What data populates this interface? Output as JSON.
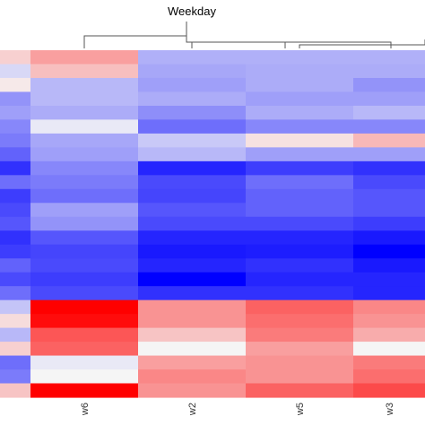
{
  "chart_data": {
    "type": "heatmap",
    "title": "Weekday",
    "columns": [
      "",
      "w6",
      "w2",
      "w5",
      "w3"
    ],
    "color_scale": {
      "low": "#0000ff",
      "mid": "#f5f5f5",
      "high": "#ff0000",
      "range": [
        -1,
        1
      ]
    },
    "rows": [
      [
        0.15,
        0.35,
        -0.28,
        -0.28,
        -0.28
      ],
      [
        -0.12,
        0.22,
        -0.32,
        -0.3,
        -0.3
      ],
      [
        0.05,
        -0.25,
        -0.35,
        -0.3,
        -0.4
      ],
      [
        -0.4,
        -0.25,
        -0.3,
        -0.35,
        -0.35
      ],
      [
        -0.35,
        -0.3,
        -0.42,
        -0.3,
        -0.25
      ],
      [
        -0.45,
        -0.05,
        -0.55,
        -0.45,
        -0.45
      ],
      [
        -0.5,
        -0.32,
        -0.18,
        0.08,
        0.25
      ],
      [
        -0.6,
        -0.35,
        -0.25,
        -0.35,
        -0.35
      ],
      [
        -0.8,
        -0.45,
        -0.85,
        -0.75,
        -0.8
      ],
      [
        -0.55,
        -0.5,
        -0.7,
        -0.55,
        -0.7
      ],
      [
        -0.75,
        -0.55,
        -0.72,
        -0.6,
        -0.65
      ],
      [
        -0.7,
        -0.35,
        -0.65,
        -0.6,
        -0.65
      ],
      [
        -0.65,
        -0.4,
        -0.7,
        -0.7,
        -0.75
      ],
      [
        -0.8,
        -0.65,
        -0.85,
        -0.85,
        -0.9
      ],
      [
        -0.75,
        -0.72,
        -0.9,
        -0.88,
        -1.0
      ],
      [
        -0.6,
        -0.7,
        -0.85,
        -0.8,
        -0.9
      ],
      [
        -0.7,
        -0.75,
        -1.0,
        -0.85,
        -0.85
      ],
      [
        -0.55,
        -0.7,
        -0.8,
        -0.8,
        -0.85
      ],
      [
        -0.2,
        1.0,
        0.4,
        0.6,
        0.45
      ],
      [
        0.1,
        0.95,
        0.4,
        0.55,
        0.4
      ],
      [
        -0.25,
        0.65,
        0.2,
        0.5,
        0.3
      ],
      [
        0.15,
        0.6,
        0.0,
        0.35,
        0.0
      ],
      [
        -0.55,
        -0.05,
        0.35,
        0.4,
        0.5
      ],
      [
        -0.5,
        0.0,
        0.45,
        0.4,
        0.55
      ],
      [
        0.2,
        1.0,
        0.4,
        0.6,
        0.7
      ]
    ]
  }
}
